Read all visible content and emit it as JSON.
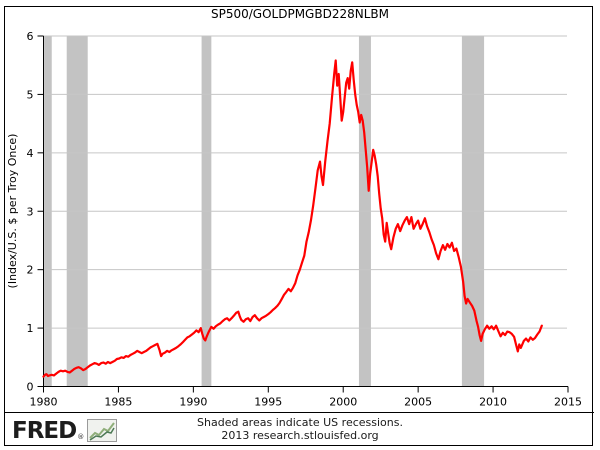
{
  "header": {
    "title": "SP500/GOLDPMGBD228NLBM"
  },
  "footer": {
    "logo_text": "FRED",
    "logo_reg": "®",
    "note_line1": "Shaded areas indicate US recessions.",
    "note_line2": "2013 research.stlouisfed.org"
  },
  "chart_data": {
    "type": "line",
    "title": "SP500/GOLDPMGBD228NLBM",
    "xlabel": "",
    "ylabel": "(Index/U.S. $ per Troy Once)",
    "xlim": [
      1980,
      2015
    ],
    "ylim": [
      0,
      6
    ],
    "x_ticks": [
      1980,
      1985,
      1990,
      1995,
      2000,
      2005,
      2010,
      2015
    ],
    "y_ticks": [
      0,
      1,
      2,
      3,
      4,
      5,
      6
    ],
    "grid": "horizontal",
    "legend": "none",
    "line_color": "#ff0000",
    "grid_color": "#c6c6c6",
    "recession_color": "#c3c3c3",
    "axis_color": "#000000",
    "recessions": [
      [
        1980.04,
        1980.55
      ],
      [
        1981.55,
        1982.95
      ],
      [
        1990.55,
        1991.2
      ],
      [
        2001.05,
        2001.85
      ],
      [
        2007.92,
        2009.4
      ]
    ],
    "series": [
      {
        "name": "SP500/GOLDPMGBD228NLBM",
        "points": [
          [
            1980.0,
            0.17
          ],
          [
            1980.1,
            0.2
          ],
          [
            1980.2,
            0.21
          ],
          [
            1980.3,
            0.18
          ],
          [
            1980.4,
            0.19
          ],
          [
            1980.55,
            0.2
          ],
          [
            1980.7,
            0.19
          ],
          [
            1980.85,
            0.22
          ],
          [
            1981.0,
            0.25
          ],
          [
            1981.15,
            0.27
          ],
          [
            1981.3,
            0.26
          ],
          [
            1981.45,
            0.27
          ],
          [
            1981.6,
            0.25
          ],
          [
            1981.75,
            0.24
          ],
          [
            1981.9,
            0.27
          ],
          [
            1982.05,
            0.3
          ],
          [
            1982.2,
            0.32
          ],
          [
            1982.35,
            0.33
          ],
          [
            1982.5,
            0.31
          ],
          [
            1982.65,
            0.28
          ],
          [
            1982.8,
            0.3
          ],
          [
            1982.95,
            0.33
          ],
          [
            1983.1,
            0.36
          ],
          [
            1983.25,
            0.38
          ],
          [
            1983.4,
            0.4
          ],
          [
            1983.55,
            0.39
          ],
          [
            1983.7,
            0.37
          ],
          [
            1983.85,
            0.4
          ],
          [
            1984.0,
            0.41
          ],
          [
            1984.15,
            0.39
          ],
          [
            1984.3,
            0.42
          ],
          [
            1984.45,
            0.4
          ],
          [
            1984.6,
            0.42
          ],
          [
            1984.75,
            0.44
          ],
          [
            1984.9,
            0.47
          ],
          [
            1985.05,
            0.48
          ],
          [
            1985.2,
            0.5
          ],
          [
            1985.35,
            0.49
          ],
          [
            1985.5,
            0.52
          ],
          [
            1985.65,
            0.51
          ],
          [
            1985.8,
            0.54
          ],
          [
            1985.95,
            0.56
          ],
          [
            1986.1,
            0.58
          ],
          [
            1986.25,
            0.61
          ],
          [
            1986.4,
            0.59
          ],
          [
            1986.55,
            0.57
          ],
          [
            1986.7,
            0.59
          ],
          [
            1986.85,
            0.61
          ],
          [
            1987.0,
            0.64
          ],
          [
            1987.15,
            0.67
          ],
          [
            1987.3,
            0.69
          ],
          [
            1987.45,
            0.71
          ],
          [
            1987.6,
            0.73
          ],
          [
            1987.75,
            0.62
          ],
          [
            1987.85,
            0.52
          ],
          [
            1987.95,
            0.56
          ],
          [
            1988.1,
            0.58
          ],
          [
            1988.25,
            0.61
          ],
          [
            1988.4,
            0.59
          ],
          [
            1988.55,
            0.62
          ],
          [
            1988.7,
            0.64
          ],
          [
            1988.85,
            0.66
          ],
          [
            1989.0,
            0.69
          ],
          [
            1989.15,
            0.72
          ],
          [
            1989.3,
            0.76
          ],
          [
            1989.45,
            0.8
          ],
          [
            1989.6,
            0.84
          ],
          [
            1989.75,
            0.86
          ],
          [
            1989.9,
            0.89
          ],
          [
            1990.05,
            0.92
          ],
          [
            1990.2,
            0.96
          ],
          [
            1990.35,
            0.93
          ],
          [
            1990.5,
            1.0
          ],
          [
            1990.6,
            0.9
          ],
          [
            1990.7,
            0.82
          ],
          [
            1990.8,
            0.79
          ],
          [
            1990.9,
            0.86
          ],
          [
            1991.0,
            0.92
          ],
          [
            1991.1,
            0.97
          ],
          [
            1991.2,
            1.02
          ],
          [
            1991.35,
            0.99
          ],
          [
            1991.5,
            1.03
          ],
          [
            1991.65,
            1.06
          ],
          [
            1991.8,
            1.08
          ],
          [
            1991.95,
            1.12
          ],
          [
            1992.1,
            1.15
          ],
          [
            1992.25,
            1.17
          ],
          [
            1992.4,
            1.13
          ],
          [
            1992.55,
            1.17
          ],
          [
            1992.7,
            1.21
          ],
          [
            1992.85,
            1.26
          ],
          [
            1993.0,
            1.28
          ],
          [
            1993.1,
            1.2
          ],
          [
            1993.2,
            1.14
          ],
          [
            1993.35,
            1.11
          ],
          [
            1993.5,
            1.15
          ],
          [
            1993.65,
            1.17
          ],
          [
            1993.8,
            1.12
          ],
          [
            1993.95,
            1.19
          ],
          [
            1994.1,
            1.22
          ],
          [
            1994.25,
            1.17
          ],
          [
            1994.4,
            1.13
          ],
          [
            1994.55,
            1.17
          ],
          [
            1994.7,
            1.19
          ],
          [
            1994.85,
            1.21
          ],
          [
            1995.0,
            1.24
          ],
          [
            1995.15,
            1.27
          ],
          [
            1995.3,
            1.31
          ],
          [
            1995.45,
            1.34
          ],
          [
            1995.6,
            1.38
          ],
          [
            1995.75,
            1.43
          ],
          [
            1995.9,
            1.5
          ],
          [
            1996.05,
            1.57
          ],
          [
            1996.2,
            1.62
          ],
          [
            1996.35,
            1.67
          ],
          [
            1996.5,
            1.63
          ],
          [
            1996.65,
            1.69
          ],
          [
            1996.8,
            1.77
          ],
          [
            1996.95,
            1.9
          ],
          [
            1997.1,
            2.0
          ],
          [
            1997.25,
            2.12
          ],
          [
            1997.4,
            2.24
          ],
          [
            1997.55,
            2.48
          ],
          [
            1997.7,
            2.64
          ],
          [
            1997.85,
            2.85
          ],
          [
            1998.0,
            3.1
          ],
          [
            1998.15,
            3.4
          ],
          [
            1998.3,
            3.7
          ],
          [
            1998.45,
            3.85
          ],
          [
            1998.55,
            3.6
          ],
          [
            1998.65,
            3.45
          ],
          [
            1998.8,
            3.85
          ],
          [
            1998.95,
            4.2
          ],
          [
            1999.1,
            4.5
          ],
          [
            1999.25,
            4.95
          ],
          [
            1999.4,
            5.35
          ],
          [
            1999.5,
            5.58
          ],
          [
            1999.6,
            5.15
          ],
          [
            1999.7,
            5.35
          ],
          [
            1999.8,
            4.95
          ],
          [
            1999.9,
            4.55
          ],
          [
            2000.0,
            4.7
          ],
          [
            2000.1,
            4.95
          ],
          [
            2000.2,
            5.2
          ],
          [
            2000.3,
            5.28
          ],
          [
            2000.4,
            5.1
          ],
          [
            2000.5,
            5.4
          ],
          [
            2000.6,
            5.55
          ],
          [
            2000.7,
            5.25
          ],
          [
            2000.8,
            5.0
          ],
          [
            2000.9,
            4.82
          ],
          [
            2001.0,
            4.7
          ],
          [
            2001.1,
            4.52
          ],
          [
            2001.2,
            4.65
          ],
          [
            2001.3,
            4.55
          ],
          [
            2001.4,
            4.35
          ],
          [
            2001.5,
            4.05
          ],
          [
            2001.6,
            3.75
          ],
          [
            2001.7,
            3.35
          ],
          [
            2001.8,
            3.65
          ],
          [
            2001.9,
            3.85
          ],
          [
            2002.0,
            4.05
          ],
          [
            2002.1,
            3.95
          ],
          [
            2002.2,
            3.8
          ],
          [
            2002.3,
            3.6
          ],
          [
            2002.4,
            3.3
          ],
          [
            2002.5,
            3.05
          ],
          [
            2002.6,
            2.88
          ],
          [
            2002.7,
            2.6
          ],
          [
            2002.8,
            2.48
          ],
          [
            2002.9,
            2.8
          ],
          [
            2003.0,
            2.62
          ],
          [
            2003.1,
            2.45
          ],
          [
            2003.2,
            2.35
          ],
          [
            2003.35,
            2.55
          ],
          [
            2003.5,
            2.7
          ],
          [
            2003.65,
            2.78
          ],
          [
            2003.8,
            2.66
          ],
          [
            2003.95,
            2.76
          ],
          [
            2004.1,
            2.84
          ],
          [
            2004.25,
            2.9
          ],
          [
            2004.4,
            2.78
          ],
          [
            2004.55,
            2.9
          ],
          [
            2004.7,
            2.7
          ],
          [
            2004.85,
            2.78
          ],
          [
            2005.0,
            2.84
          ],
          [
            2005.15,
            2.7
          ],
          [
            2005.3,
            2.78
          ],
          [
            2005.45,
            2.88
          ],
          [
            2005.6,
            2.74
          ],
          [
            2005.75,
            2.64
          ],
          [
            2005.9,
            2.52
          ],
          [
            2006.05,
            2.42
          ],
          [
            2006.2,
            2.28
          ],
          [
            2006.35,
            2.18
          ],
          [
            2006.5,
            2.32
          ],
          [
            2006.65,
            2.42
          ],
          [
            2006.8,
            2.34
          ],
          [
            2006.95,
            2.44
          ],
          [
            2007.1,
            2.38
          ],
          [
            2007.25,
            2.46
          ],
          [
            2007.4,
            2.32
          ],
          [
            2007.55,
            2.36
          ],
          [
            2007.7,
            2.22
          ],
          [
            2007.85,
            2.05
          ],
          [
            2008.0,
            1.8
          ],
          [
            2008.1,
            1.55
          ],
          [
            2008.2,
            1.42
          ],
          [
            2008.3,
            1.5
          ],
          [
            2008.45,
            1.44
          ],
          [
            2008.6,
            1.38
          ],
          [
            2008.75,
            1.3
          ],
          [
            2008.9,
            1.12
          ],
          [
            2009.0,
            1.02
          ],
          [
            2009.1,
            0.88
          ],
          [
            2009.2,
            0.78
          ],
          [
            2009.3,
            0.9
          ],
          [
            2009.45,
            0.98
          ],
          [
            2009.6,
            1.04
          ],
          [
            2009.75,
            0.99
          ],
          [
            2009.9,
            1.03
          ],
          [
            2010.05,
            0.98
          ],
          [
            2010.2,
            1.04
          ],
          [
            2010.35,
            0.95
          ],
          [
            2010.5,
            0.86
          ],
          [
            2010.65,
            0.92
          ],
          [
            2010.8,
            0.88
          ],
          [
            2010.95,
            0.94
          ],
          [
            2011.1,
            0.93
          ],
          [
            2011.25,
            0.9
          ],
          [
            2011.4,
            0.85
          ],
          [
            2011.55,
            0.7
          ],
          [
            2011.65,
            0.6
          ],
          [
            2011.75,
            0.72
          ],
          [
            2011.85,
            0.66
          ],
          [
            2011.95,
            0.72
          ],
          [
            2012.05,
            0.78
          ],
          [
            2012.2,
            0.82
          ],
          [
            2012.35,
            0.77
          ],
          [
            2012.5,
            0.84
          ],
          [
            2012.65,
            0.8
          ],
          [
            2012.8,
            0.83
          ],
          [
            2012.95,
            0.89
          ],
          [
            2013.1,
            0.94
          ],
          [
            2013.25,
            1.04
          ]
        ]
      }
    ]
  }
}
